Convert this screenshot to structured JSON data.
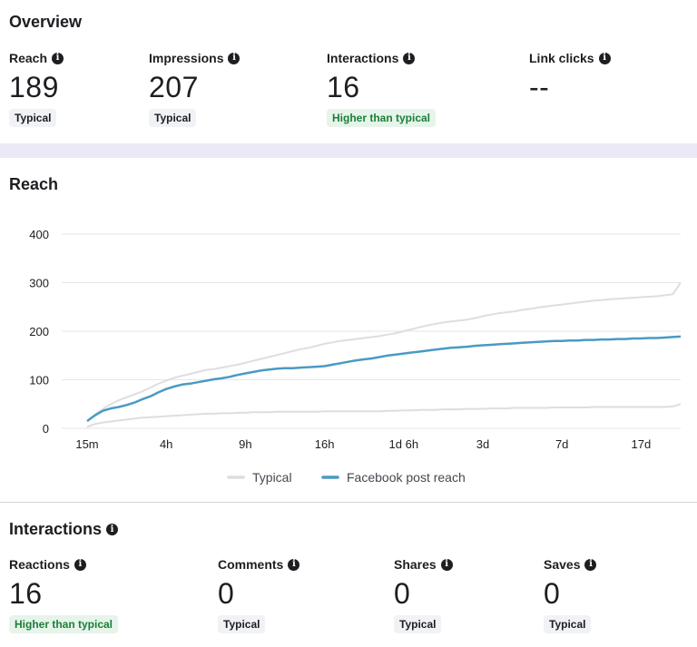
{
  "overview": {
    "title": "Overview",
    "metrics": [
      {
        "label": "Reach",
        "value": "189",
        "badge": "Typical",
        "badge_type": "neutral"
      },
      {
        "label": "Impressions",
        "value": "207",
        "badge": "Typical",
        "badge_type": "neutral"
      },
      {
        "label": "Interactions",
        "value": "16",
        "badge": "Higher than typical",
        "badge_type": "good"
      },
      {
        "label": "Link clicks",
        "value": "--",
        "badge": "",
        "badge_type": "none"
      }
    ]
  },
  "reach": {
    "title": "Reach"
  },
  "chart_data": {
    "type": "line",
    "title": "Reach",
    "x": [
      0,
      1,
      2,
      3,
      4,
      5,
      6,
      7,
      8,
      9,
      10,
      11,
      12,
      13,
      14,
      15,
      16,
      17,
      18,
      19,
      20,
      21,
      22,
      23,
      24,
      25,
      26,
      27,
      28,
      29,
      30,
      31,
      32,
      33,
      34,
      35,
      36,
      37,
      38,
      39,
      40,
      41,
      42,
      43,
      44,
      45,
      46,
      47,
      48,
      49,
      50,
      51,
      52,
      53,
      54,
      55,
      56,
      57,
      58,
      59,
      60,
      61,
      62,
      63,
      64,
      65,
      66,
      67,
      68,
      69,
      70,
      71,
      72,
      73,
      74,
      75
    ],
    "x_tick_labels": [
      "15m",
      "4h",
      "9h",
      "16h",
      "1d 6h",
      "3d",
      "7d",
      "17d"
    ],
    "x_tick_positions": [
      0,
      10,
      20,
      30,
      40,
      50,
      60,
      70
    ],
    "ylim": [
      0,
      400
    ],
    "y_ticks": [
      0,
      100,
      200,
      300,
      400
    ],
    "grid": true,
    "legend": "bottom",
    "series": [
      {
        "name": "Typical",
        "color": "#dcdee2",
        "values": [
          15,
          28,
          40,
          50,
          58,
          64,
          70,
          76,
          84,
          92,
          98,
          104,
          108,
          112,
          116,
          120,
          122,
          125,
          128,
          131,
          135,
          139,
          143,
          147,
          151,
          155,
          159,
          163,
          166,
          170,
          174,
          177,
          180,
          182,
          184,
          186,
          188,
          190,
          193,
          196,
          200,
          204,
          208,
          212,
          215,
          218,
          220,
          222,
          224,
          227,
          231,
          234,
          237,
          239,
          241,
          244,
          246,
          249,
          251,
          253,
          255,
          257,
          259,
          261,
          263,
          264,
          266,
          267,
          268,
          269,
          270,
          271,
          272,
          274,
          276,
          300
        ]
      },
      {
        "name": "",
        "color": "#dcdee2",
        "values": [
          3,
          9,
          12,
          14,
          16,
          18,
          20,
          22,
          23,
          24,
          25,
          26,
          27,
          28,
          29,
          30,
          30,
          31,
          31,
          32,
          32,
          33,
          33,
          33,
          34,
          34,
          34,
          34,
          34,
          34,
          35,
          35,
          35,
          35,
          35,
          35,
          35,
          35,
          36,
          36,
          37,
          37,
          38,
          38,
          38,
          39,
          39,
          39,
          40,
          40,
          40,
          41,
          41,
          41,
          42,
          42,
          42,
          42,
          42,
          43,
          43,
          43,
          43,
          43,
          44,
          44,
          44,
          44,
          44,
          44,
          44,
          44,
          44,
          44,
          45,
          50
        ]
      },
      {
        "name": "Facebook post reach",
        "color": "#4a9ac4",
        "values": [
          15,
          27,
          36,
          41,
          44,
          48,
          53,
          60,
          66,
          74,
          81,
          86,
          90,
          92,
          95,
          98,
          101,
          103,
          106,
          110,
          113,
          116,
          119,
          121,
          123,
          124,
          124,
          125,
          126,
          127,
          128,
          131,
          134,
          137,
          140,
          142,
          144,
          147,
          150,
          152,
          154,
          156,
          158,
          160,
          162,
          164,
          166,
          167,
          168,
          170,
          171,
          172,
          173,
          174,
          175,
          176,
          177,
          178,
          179,
          180,
          180,
          181,
          181,
          182,
          182,
          183,
          183,
          184,
          184,
          185,
          185,
          186,
          186,
          187,
          188,
          189
        ]
      }
    ]
  },
  "interactions": {
    "title": "Interactions",
    "metrics": [
      {
        "label": "Reactions",
        "value": "16",
        "badge": "Higher than typical",
        "badge_type": "good"
      },
      {
        "label": "Comments",
        "value": "0",
        "badge": "Typical",
        "badge_type": "neutral"
      },
      {
        "label": "Shares",
        "value": "0",
        "badge": "Typical",
        "badge_type": "neutral"
      },
      {
        "label": "Saves",
        "value": "0",
        "badge": "Typical",
        "badge_type": "neutral"
      }
    ]
  },
  "icons": {
    "info": "info-icon"
  }
}
